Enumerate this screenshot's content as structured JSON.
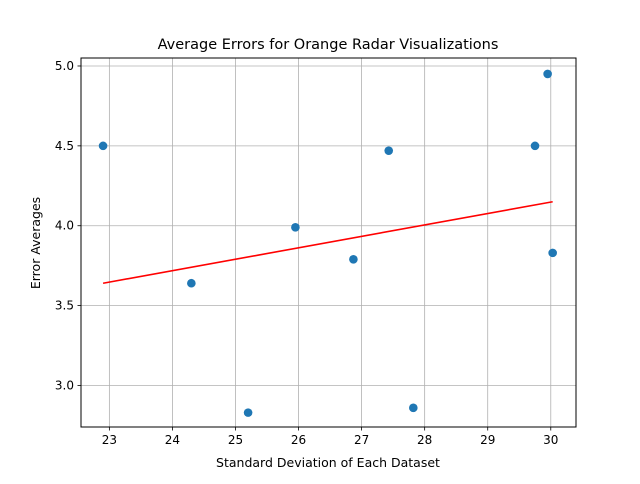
{
  "chart_data": {
    "type": "scatter",
    "title": "Average Errors for Orange Radar Visualizations",
    "xlabel": "Standard Deviation of Each Dataset",
    "ylabel": "Error Averages",
    "xlim": [
      22.55,
      30.4
    ],
    "ylim": [
      2.74,
      5.05
    ],
    "xticks": [
      23,
      24,
      25,
      26,
      27,
      28,
      29,
      30
    ],
    "yticks": [
      3.0,
      3.5,
      4.0,
      4.5,
      5.0
    ],
    "xtick_labels": [
      "23",
      "24",
      "25",
      "26",
      "27",
      "28",
      "29",
      "30"
    ],
    "ytick_labels": [
      "3.0",
      "3.5",
      "4.0",
      "4.5",
      "5.0"
    ],
    "grid": true,
    "points": [
      {
        "x": 22.9,
        "y": 4.5
      },
      {
        "x": 24.3,
        "y": 3.64
      },
      {
        "x": 25.2,
        "y": 2.83
      },
      {
        "x": 25.95,
        "y": 3.99
      },
      {
        "x": 26.87,
        "y": 3.79
      },
      {
        "x": 27.43,
        "y": 4.47
      },
      {
        "x": 27.82,
        "y": 2.86
      },
      {
        "x": 29.75,
        "y": 4.5
      },
      {
        "x": 29.95,
        "y": 4.95
      },
      {
        "x": 30.03,
        "y": 3.83
      }
    ],
    "trendline": {
      "x": [
        22.9,
        30.03
      ],
      "y": [
        3.64,
        4.15
      ]
    },
    "colors": {
      "points": "#1f77b4",
      "trendline": "#ff0000",
      "grid": "#b0b0b0"
    }
  }
}
